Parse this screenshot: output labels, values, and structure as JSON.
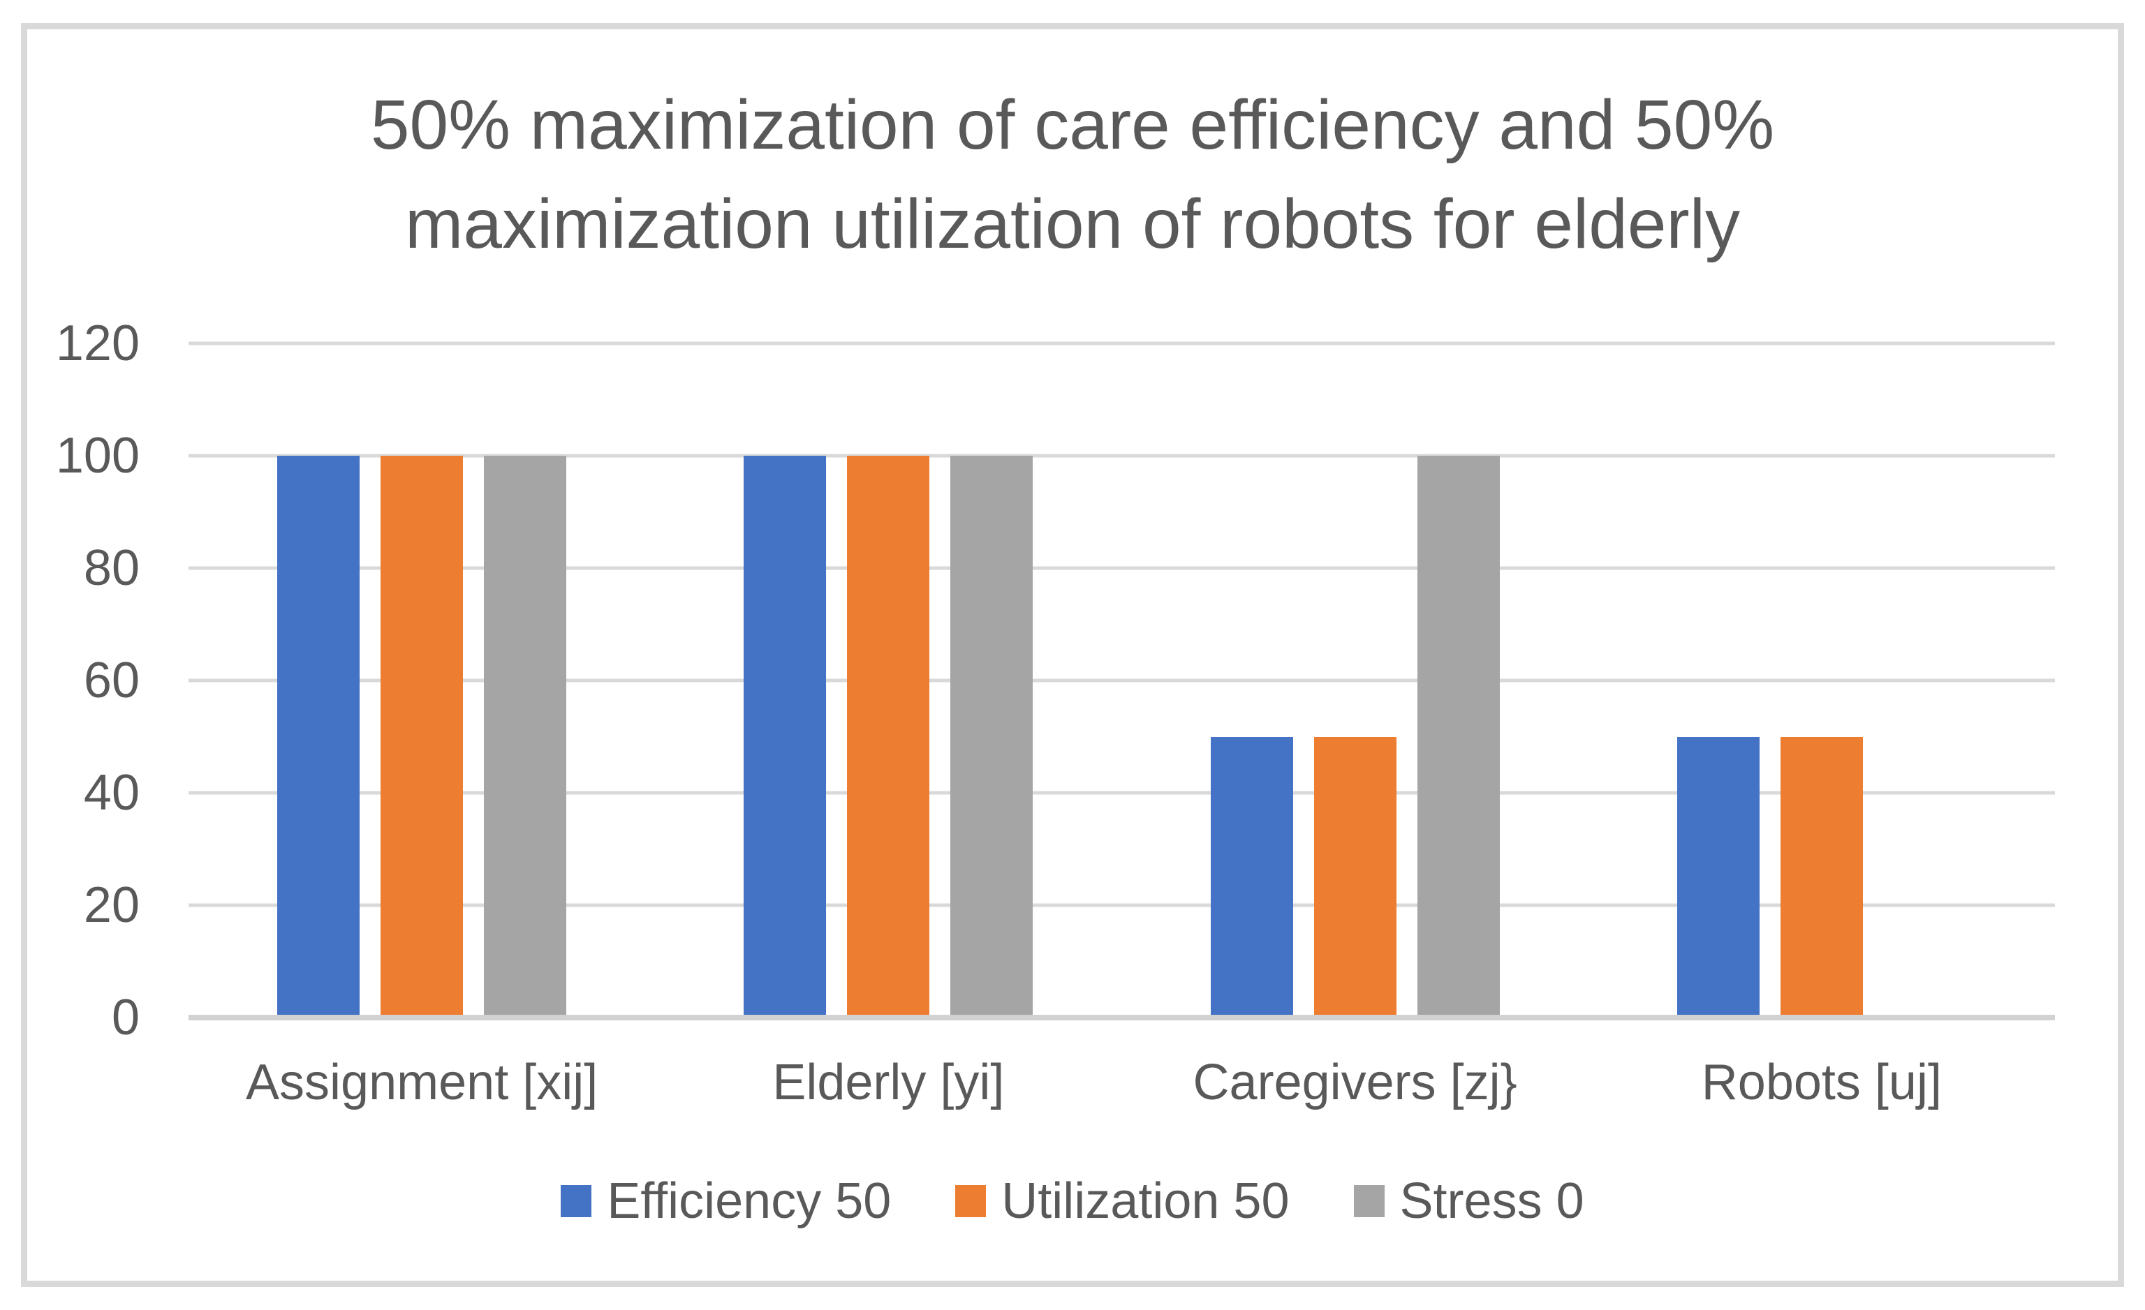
{
  "chart_data": {
    "type": "bar",
    "title": "50% maximization of care efficiency and 50%\nmaximization utilization of robots for elderly",
    "categories": [
      "Assignment [xij]",
      "Elderly [yi]",
      "Caregivers [zj}",
      "Robots [uj]"
    ],
    "series": [
      {
        "name": "Efficiency 50",
        "color": "#4472C4",
        "values": [
          100,
          100,
          50,
          50
        ]
      },
      {
        "name": "Utilization 50",
        "color": "#ED7D31",
        "values": [
          100,
          100,
          50,
          50
        ]
      },
      {
        "name": "Stress 0",
        "color": "#A5A5A5",
        "values": [
          100,
          100,
          100,
          0
        ]
      }
    ],
    "ylim": [
      0,
      120
    ],
    "ytick_step": 20,
    "yticks": [
      0,
      20,
      40,
      60,
      80,
      100,
      120
    ],
    "xlabel": "",
    "ylabel": "",
    "grid": true,
    "legend_position": "bottom"
  },
  "colors": {
    "series_blue": "#4472C4",
    "series_orange": "#ED7D31",
    "series_gray": "#A5A5A5",
    "text": "#595959",
    "gridline": "#D9D9D9",
    "axis_line": "#D2D2D2",
    "frame_border": "#D9D9D9",
    "background": "#FFFFFF"
  }
}
